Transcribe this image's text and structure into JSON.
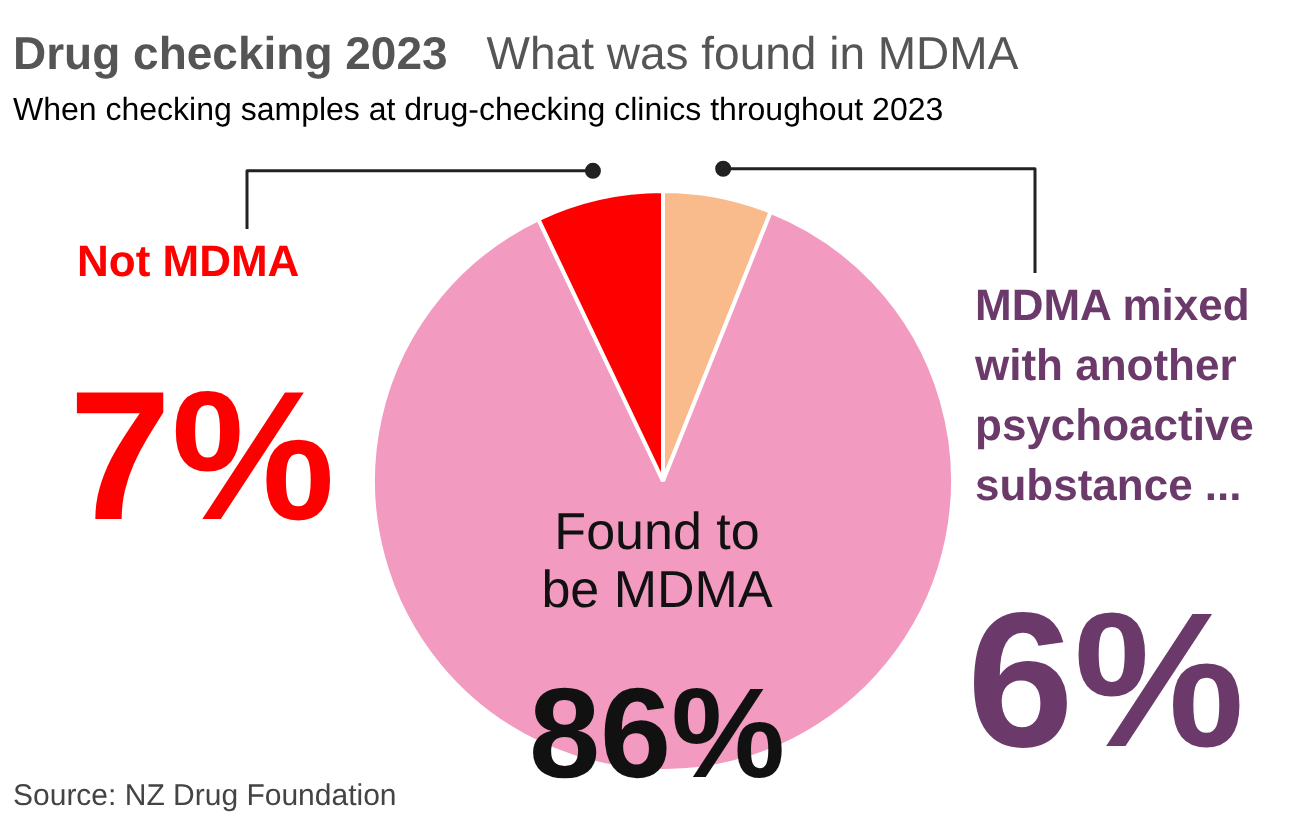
{
  "chart_data": {
    "type": "pie",
    "title": "Drug checking 2023",
    "subtitle": "What was found in MDMA",
    "categories": [
      "MDMA mixed with another psychoactive substance ...",
      "Found to be MDMA",
      "Not MDMA"
    ],
    "values": [
      6,
      86,
      7
    ],
    "colors": [
      "#f9bb8c",
      "#f29ac0",
      "#ff0000"
    ],
    "value_labels": [
      "6%",
      "86%",
      "7%"
    ],
    "annotations": [
      "When checking samples at drug-checking clinics throughout 2023",
      "Source: NZ Drug Foundation"
    ]
  }
}
